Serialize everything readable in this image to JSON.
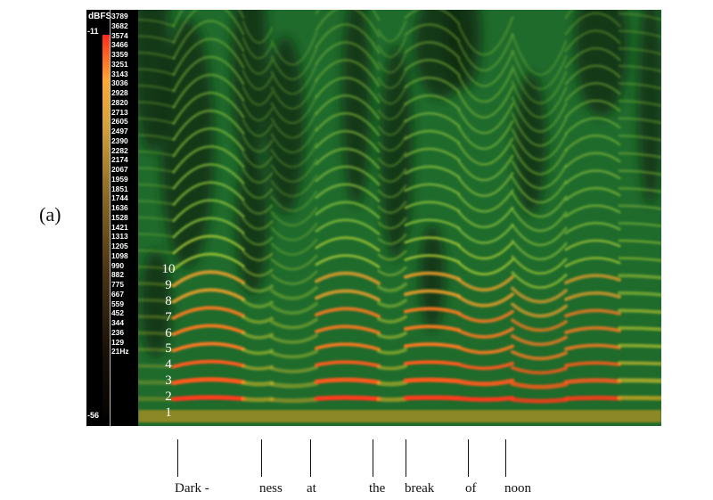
{
  "panel_label": "(a)",
  "chart_data": {
    "type": "heatmap",
    "title": "",
    "xlabel": "",
    "ylabel": "",
    "y_unit_label": "Hz",
    "y_axis_ticks": [
      "3789",
      "3682",
      "3574",
      "3466",
      "3359",
      "3251",
      "3143",
      "3036",
      "2928",
      "2820",
      "2713",
      "2605",
      "2497",
      "2390",
      "2282",
      "2174",
      "2067",
      "1959",
      "1851",
      "1744",
      "1636",
      "1528",
      "1421",
      "1313",
      "1205",
      "1098",
      "990",
      "882",
      "775",
      "667",
      "559",
      "452",
      "344",
      "236",
      "129",
      "21Hz"
    ],
    "ylim": [
      21,
      3789
    ],
    "color_scale": {
      "label": "dBFS",
      "max_label": "-11",
      "min_label": "-56",
      "range": [
        -56,
        -11
      ],
      "colors": [
        "#000000",
        "#1a1208",
        "#8a6a22",
        "#ffa830",
        "#ff2a1a"
      ]
    },
    "harmonic_labels": [
      "10",
      "9",
      "8",
      "7",
      "6",
      "5",
      "4",
      "3",
      "2",
      "1"
    ],
    "syllables": [
      {
        "text": "Dark -"
      },
      {
        "text": "ness"
      },
      {
        "text": "at"
      },
      {
        "text": "the"
      },
      {
        "text": "break"
      },
      {
        "text": "of"
      },
      {
        "text": "noon"
      }
    ]
  }
}
